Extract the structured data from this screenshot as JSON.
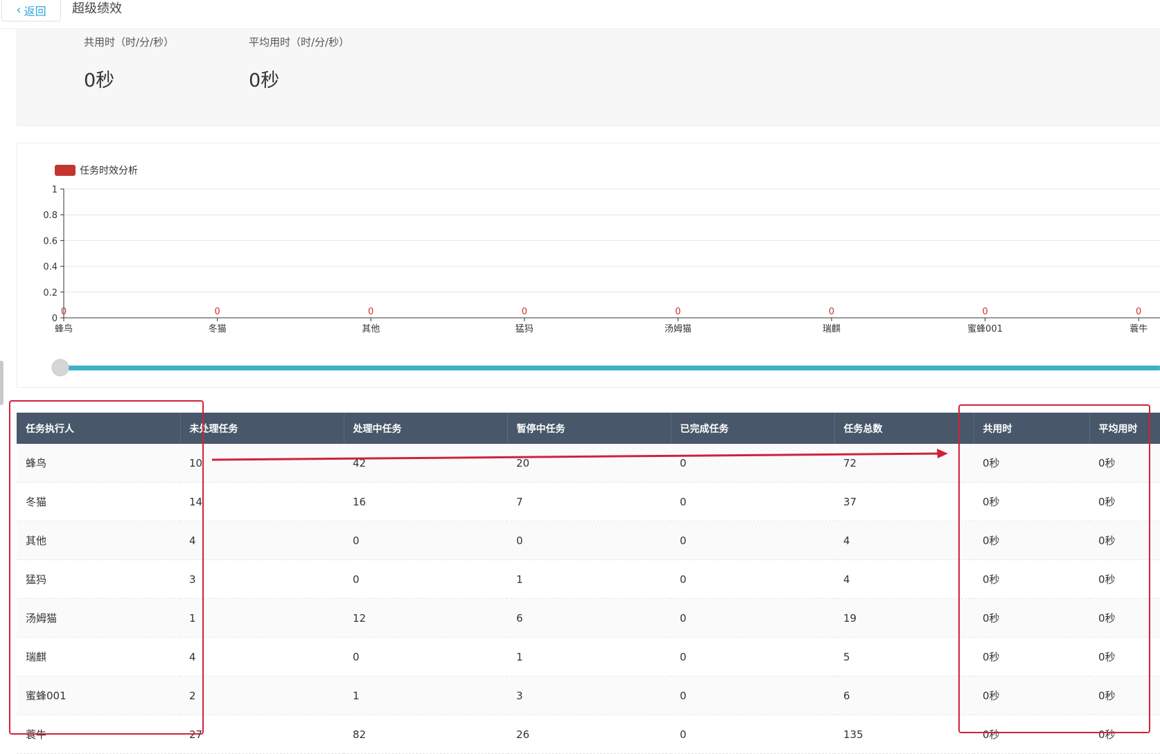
{
  "header": {
    "back_label": "返回",
    "title": "超级绩效"
  },
  "summary": {
    "total_label": "共用时（时/分/秒）",
    "total_value": "0秒",
    "avg_label": "平均用时（时/分/秒）",
    "avg_value": "0秒"
  },
  "colors": {
    "header_bg": "#485769",
    "series": "#c23531",
    "slider": "#3bb3c3",
    "annotation": "#d0213b"
  },
  "chart_data": {
    "type": "bar",
    "legend": "任务时效分析",
    "categories": [
      "蜂鸟",
      "冬猫",
      "其他",
      "猛犸",
      "汤姆猫",
      "瑞麒",
      "蜜蜂001",
      "蓑牛"
    ],
    "series": [
      {
        "name": "任务时效分析",
        "values": [
          0,
          0,
          0,
          0,
          0,
          0,
          0,
          0
        ]
      }
    ],
    "ylim": [
      0,
      1
    ],
    "yticks": [
      "1",
      "0.8",
      "0.6",
      "0.4",
      "0.2",
      "0"
    ],
    "data_labels": [
      "0",
      "0",
      "0",
      "0",
      "0",
      "0",
      "0",
      "0"
    ],
    "grid": true,
    "legend_position": "top-left"
  },
  "table": {
    "headers": [
      "任务执行人",
      "未处理任务",
      "处理中任务",
      "暂停中任务",
      "已完成任务",
      "任务总数",
      "共用时",
      "平均用时"
    ],
    "rows": [
      [
        "蜂鸟",
        "10",
        "42",
        "20",
        "0",
        "72",
        "0秒",
        "0秒"
      ],
      [
        "冬猫",
        "14",
        "16",
        "7",
        "0",
        "37",
        "0秒",
        "0秒"
      ],
      [
        "其他",
        "4",
        "0",
        "0",
        "0",
        "4",
        "0秒",
        "0秒"
      ],
      [
        "猛犸",
        "3",
        "0",
        "1",
        "0",
        "4",
        "0秒",
        "0秒"
      ],
      [
        "汤姆猫",
        "1",
        "12",
        "6",
        "0",
        "19",
        "0秒",
        "0秒"
      ],
      [
        "瑞麒",
        "4",
        "0",
        "1",
        "0",
        "5",
        "0秒",
        "0秒"
      ],
      [
        "蜜蜂001",
        "2",
        "1",
        "3",
        "0",
        "6",
        "0秒",
        "0秒"
      ],
      [
        "蓑牛",
        "27",
        "82",
        "26",
        "0",
        "135",
        "0秒",
        "0秒"
      ]
    ]
  }
}
